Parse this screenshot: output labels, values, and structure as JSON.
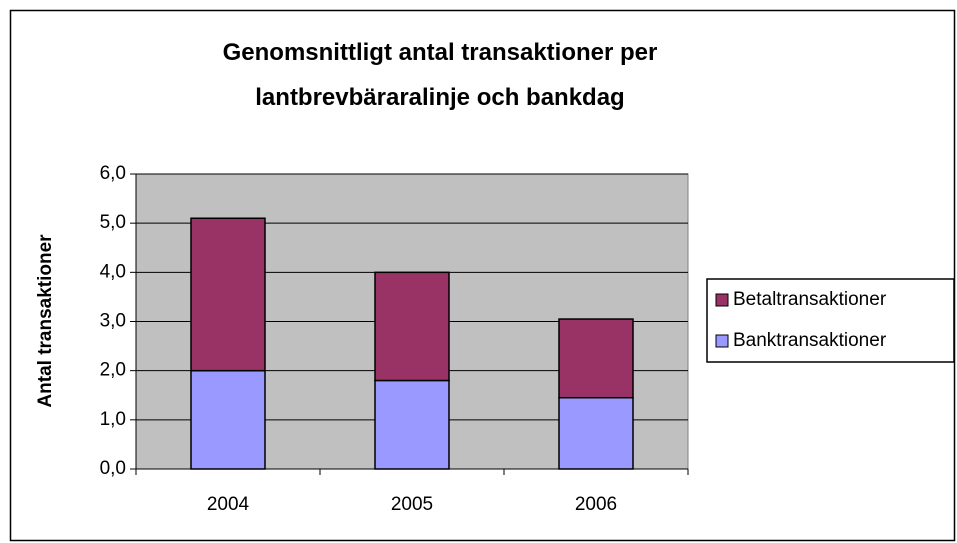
{
  "chart_data": {
    "type": "stacked_bar",
    "title": "Genomsnittligt antal transaktioner per lantbrevbäraralinje och bankdag",
    "y_label": "Antal transaktioner",
    "categories": [
      "2004",
      "2005",
      "2006"
    ],
    "series": [
      {
        "name": "Banktransaktioner",
        "color": "#9999ff",
        "values": [
          2.0,
          1.8,
          1.45
        ]
      },
      {
        "name": "Betaltransaktioner",
        "color": "#993366",
        "values": [
          3.1,
          2.2,
          1.6
        ]
      }
    ],
    "ylim": [
      0,
      6
    ],
    "yticks": [
      {
        "value": 0,
        "label": "0,0"
      },
      {
        "value": 1,
        "label": "1,0"
      },
      {
        "value": 2,
        "label": "2,0"
      },
      {
        "value": 3,
        "label": "3,0"
      },
      {
        "value": 4,
        "label": "4,0"
      },
      {
        "value": 5,
        "label": "5,0"
      },
      {
        "value": 6,
        "label": "6,0"
      }
    ],
    "grid": true,
    "legend": "right"
  }
}
